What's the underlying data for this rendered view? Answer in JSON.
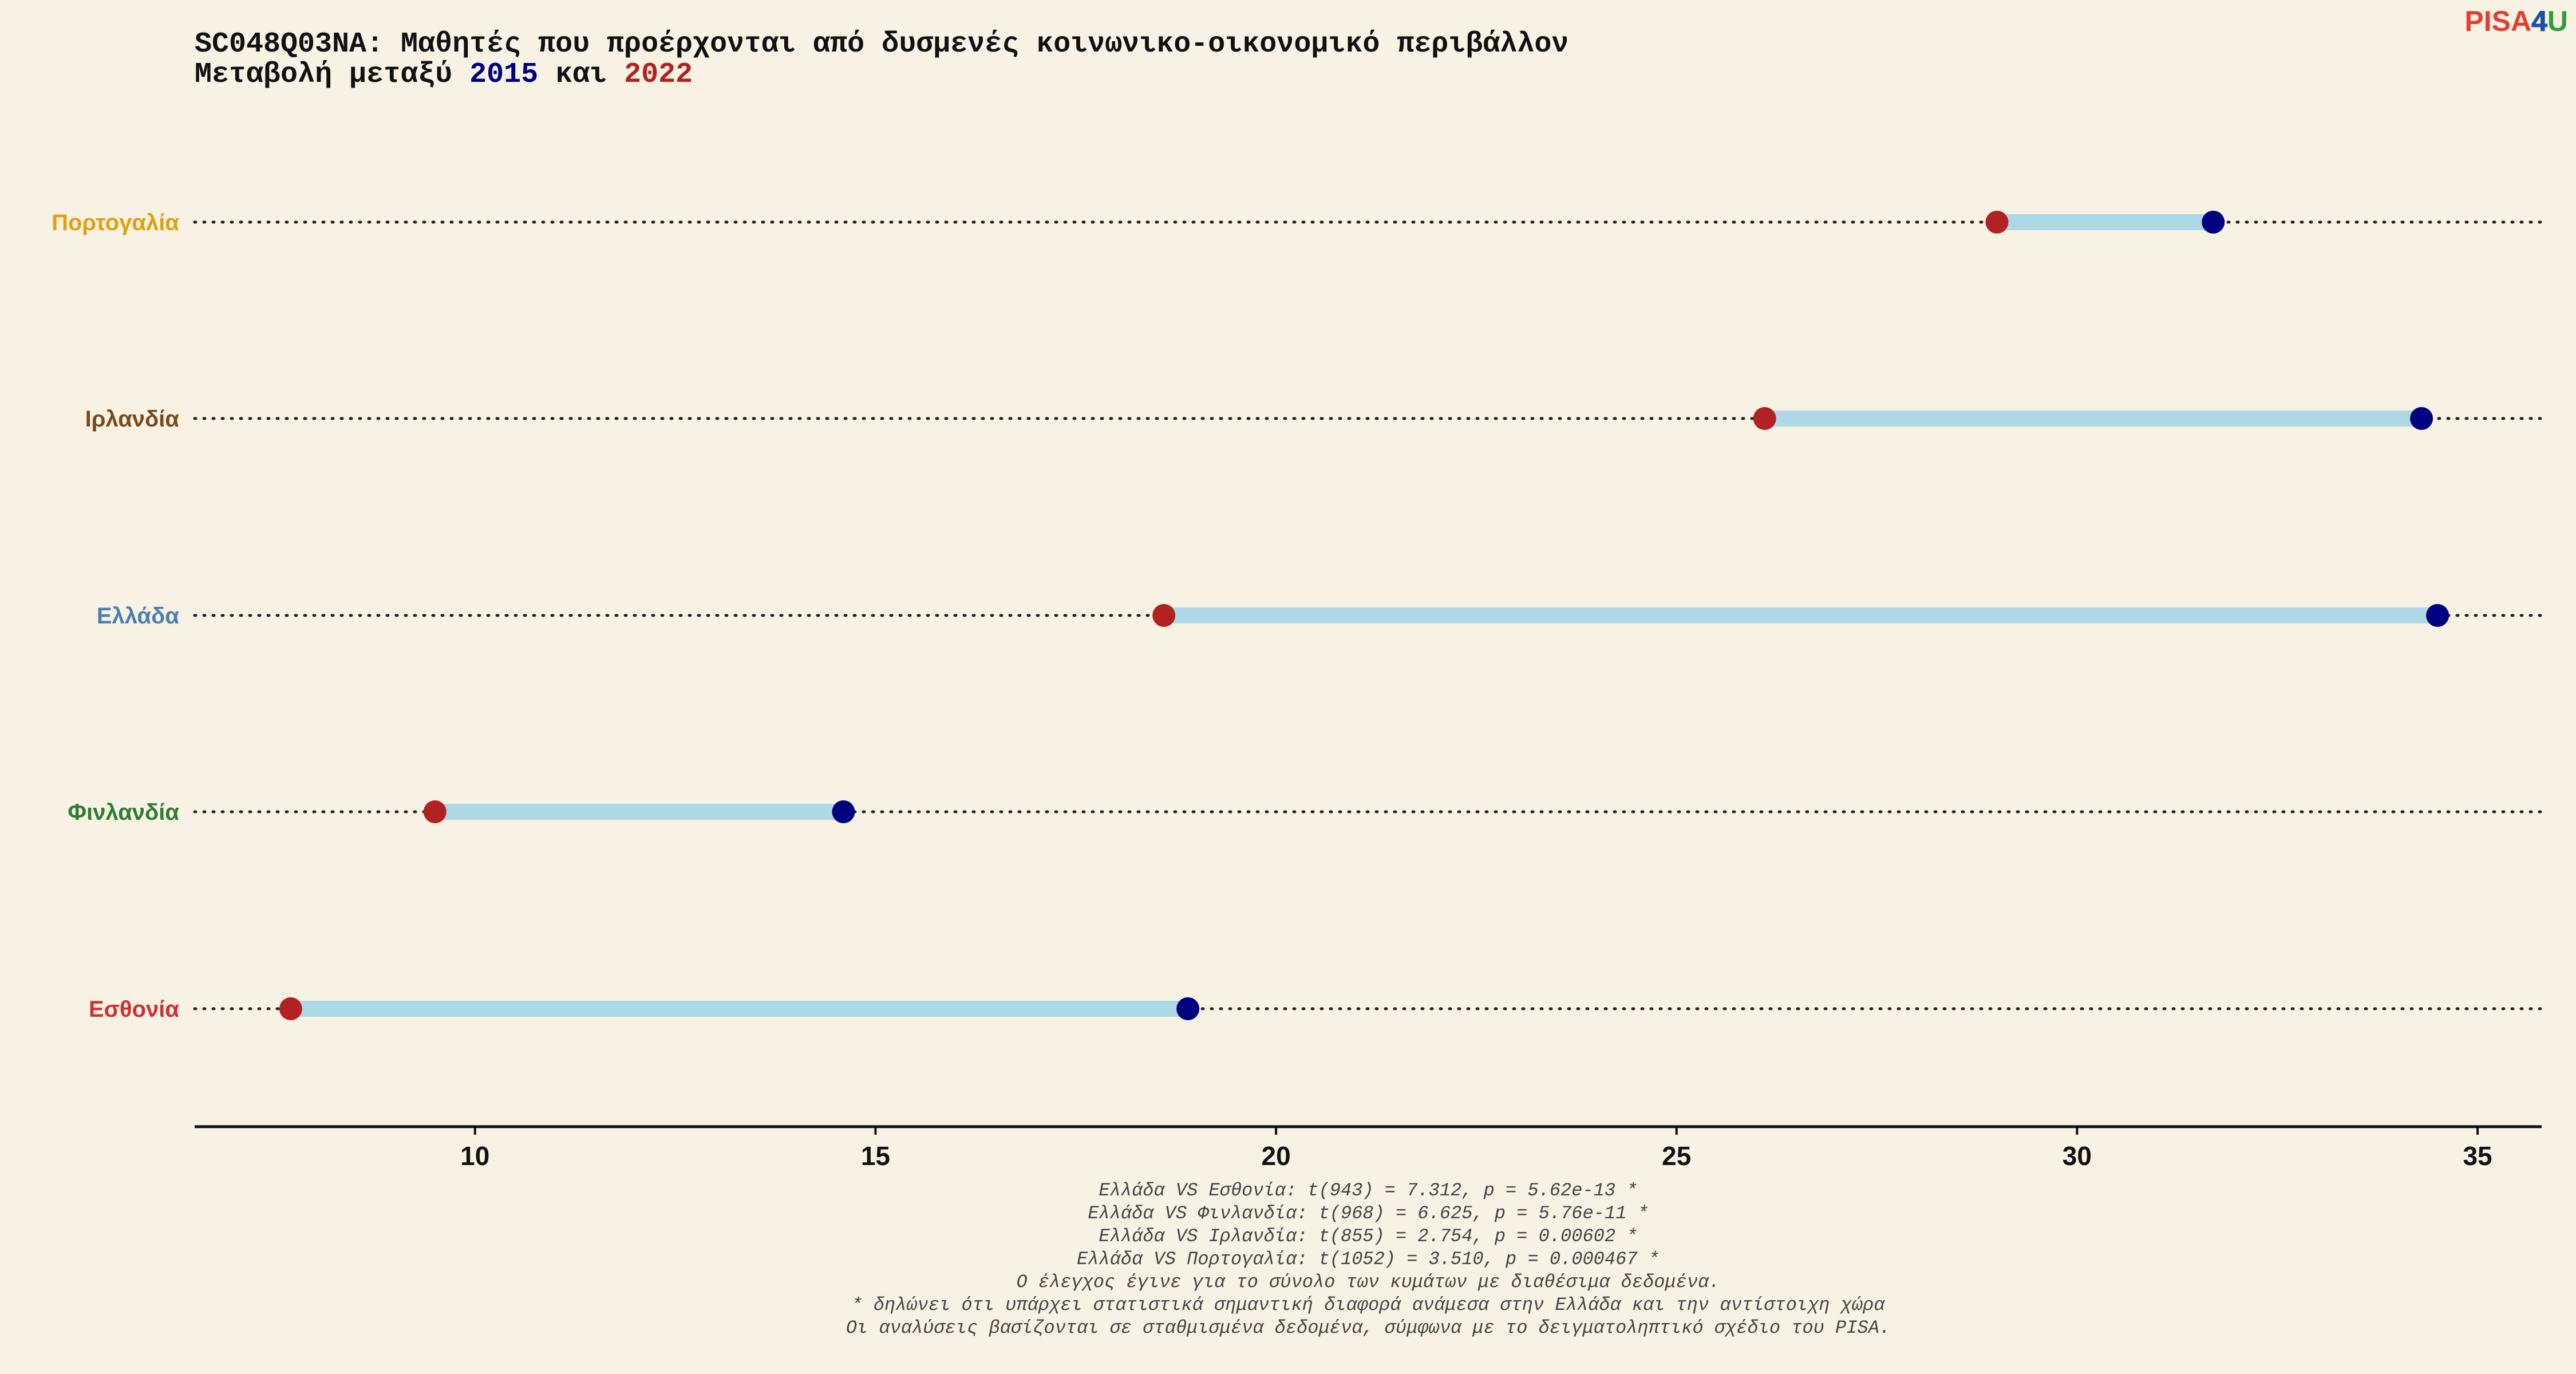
{
  "logo": {
    "part1": "PISA",
    "part2": "4",
    "part3": "U"
  },
  "chart_data": {
    "type": "dumbbell",
    "title_line1": "SC048Q03NA: Μαθητές που προέρχονται από δυσμενές κοινωνικο-οικονομικό περιβάλλον",
    "title_line2_prefix": "Μεταβολή μεταξύ ",
    "title_line2_year1": "2015",
    "title_line2_mid": " και ",
    "title_line2_year2": "2022",
    "xlim": [
      6.5,
      35.8
    ],
    "xticks": [
      10,
      15,
      20,
      25,
      30,
      35
    ],
    "grid": false,
    "series": [
      {
        "year": "2015",
        "color": "#000080"
      },
      {
        "year": "2022",
        "color": "#b22222"
      }
    ],
    "connector_color": "#add8e6",
    "countries": [
      {
        "name": "Πορτογαλία",
        "label_color": "#e0a010",
        "v2015": 31.7,
        "v2022": 29.0
      },
      {
        "name": "Ιρλανδία",
        "label_color": "#7a4a1a",
        "v2015": 34.3,
        "v2022": 26.1
      },
      {
        "name": "Ελλάδα",
        "label_color": "#4a7fb5",
        "v2015": 34.5,
        "v2022": 18.6
      },
      {
        "name": "Φινλανδία",
        "label_color": "#2e7d32",
        "v2015": 14.6,
        "v2022": 9.5
      },
      {
        "name": "Εσθονία",
        "label_color": "#d32f2f",
        "v2015": 18.9,
        "v2022": 7.7
      }
    ],
    "footnotes": [
      "Ελλάδα VS Εσθονία: t(943) = 7.312, p = 5.62e-13 *",
      "Ελλάδα VS Φινλανδία: t(968) = 6.625, p = 5.76e-11 *",
      "Ελλάδα VS Ιρλανδία: t(855) = 2.754, p = 0.00602 *",
      "Ελλάδα VS Πορτογαλία: t(1052) = 3.510, p = 0.000467 *",
      "Ο έλεγχος έγινε για το σύνολο των κυμάτων με διαθέσιμα δεδομένα.",
      "* δηλώνει ότι υπάρχει στατιστικά σημαντική διαφορά ανάμεσα στην Ελλάδα και την αντίστοιχη χώρα",
      "Οι αναλύσεις βασίζονται σε σταθμισμένα δεδομένα, σύμφωνα με το δειγματοληπτικό σχέδιο του PISA."
    ]
  }
}
